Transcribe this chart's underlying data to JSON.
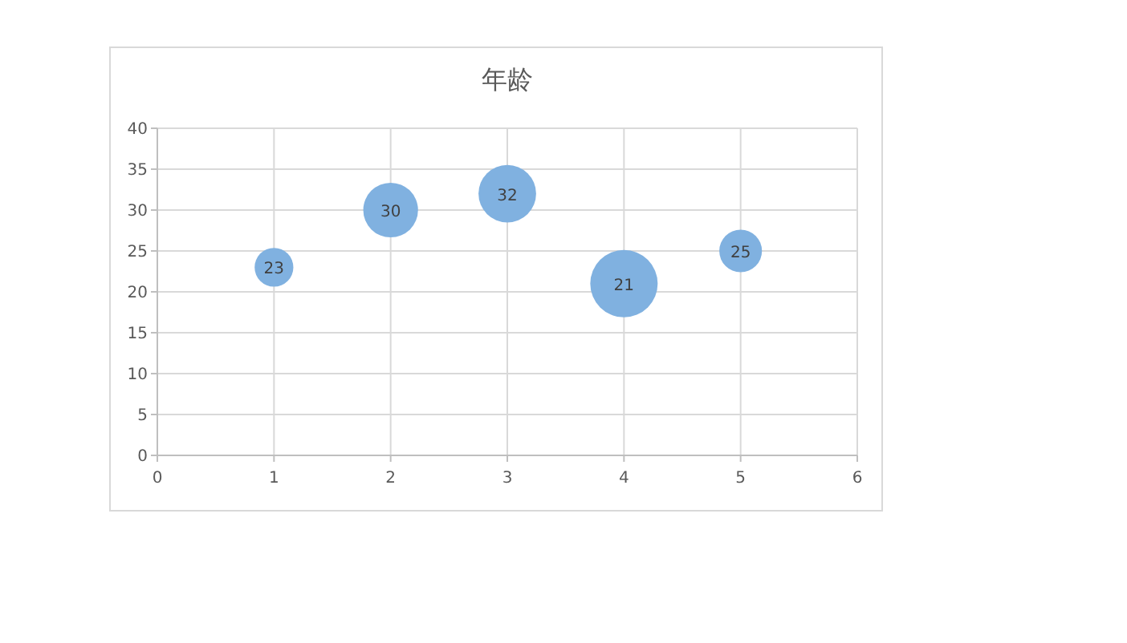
{
  "chart_data": {
    "type": "bubble",
    "title": "年龄",
    "x": [
      1,
      2,
      3,
      4,
      5
    ],
    "values": [
      23,
      30,
      32,
      21,
      25
    ],
    "sizes": [
      0.33,
      0.66,
      0.73,
      1,
      0.4
    ],
    "color": "#80b1e0",
    "data_labels": true,
    "xlim": [
      0,
      6
    ],
    "xticks": [
      0,
      1,
      2,
      3,
      4,
      5,
      6
    ],
    "ylim": [
      0,
      40
    ],
    "yticks": [
      0,
      5,
      10,
      15,
      20,
      25,
      30,
      35,
      40
    ],
    "grid": true
  }
}
